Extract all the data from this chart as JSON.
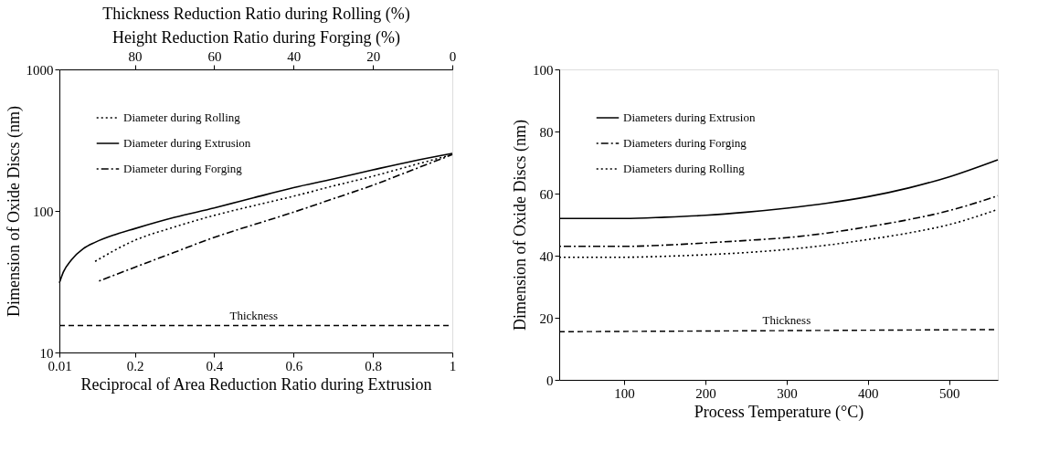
{
  "chart_data": [
    {
      "type": "line",
      "xlabel": "Reciprocal of Area Reduction Ratio during Extrusion",
      "ylabel": "Dimension of Oxide Discs (nm)",
      "x2label": "Thickness Reduction Ratio during Rolling (%)\nHeight Reduction Ratio during Forging (%)",
      "xlim": [
        0.01,
        1
      ],
      "xticks": [
        0.01,
        0.2,
        0.4,
        0.6,
        0.8,
        1
      ],
      "x2lim": [
        99,
        0
      ],
      "x2ticks": [
        80,
        60,
        40,
        20,
        0
      ],
      "ylim": [
        10,
        1000
      ],
      "yticks": [
        10,
        100,
        1000
      ],
      "log": "y",
      "grid": false,
      "legend": "top left",
      "x": [
        0.01,
        0.02,
        0.04,
        0.07,
        0.1,
        0.15,
        0.2,
        0.3,
        0.4,
        0.5,
        0.6,
        0.7,
        0.8,
        0.9,
        1
      ],
      "series": [
        {
          "name": "Diameter during Rolling",
          "color": "#000000",
          "line_style": "dotted",
          "x": [
            0.1,
            0.2,
            0.3,
            0.4,
            0.5,
            0.6,
            0.7,
            0.8,
            0.9,
            1
          ],
          "values": [
            44,
            62,
            77,
            93,
            109,
            127,
            150,
            176,
            210,
            250
          ]
        },
        {
          "name": "Diameter during Extrusion",
          "color": "#000000",
          "line_style": "solid",
          "values": [
            31,
            37,
            45,
            54,
            60,
            68,
            75,
            90,
            105,
            124,
            146,
            168,
            195,
            225,
            255
          ]
        },
        {
          "name": "Diameter during Forging",
          "color": "#000000",
          "line_style": "dashdot",
          "x": [
            0.11,
            0.2,
            0.3,
            0.4,
            0.5,
            0.6,
            0.7,
            0.8,
            0.9,
            1
          ],
          "values": [
            32,
            40,
            51,
            65,
            80,
            98,
            122,
            152,
            195,
            250
          ]
        },
        {
          "color": "#000000",
          "line_style": "dashed",
          "x": [
            0.01,
            1
          ],
          "values": [
            15.5,
            15.5
          ]
        }
      ],
      "annotations": [
        {
          "text": "Thickness",
          "x": 0.5,
          "y": 16.3
        }
      ]
    },
    {
      "type": "line",
      "xlabel": "Process Temperature (°C)",
      "ylabel": "Dimension of Oxide Discs (nm)",
      "xlim": [
        20,
        560
      ],
      "xticks": [
        100,
        200,
        300,
        400,
        500
      ],
      "ylim": [
        0,
        100
      ],
      "yticks": [
        0,
        20,
        40,
        60,
        80,
        100
      ],
      "grid": false,
      "legend": "top left",
      "x": [
        20,
        100,
        150,
        200,
        250,
        300,
        350,
        400,
        450,
        500,
        560
      ],
      "series": [
        {
          "name": "Diameters during Extrusion",
          "color": "#000000",
          "line_style": "solid",
          "values": [
            52,
            52,
            52.4,
            53,
            54,
            55.3,
            56.9,
            59,
            61.8,
            65.4,
            70.9
          ]
        },
        {
          "name": "Diameters during Forging",
          "color": "#000000",
          "line_style": "dashdot",
          "values": [
            43,
            43,
            43.4,
            44.1,
            44.9,
            45.8,
            47.3,
            49.3,
            51.6,
            54.5,
            59.3
          ]
        },
        {
          "name": "Diameters during Rolling",
          "color": "#000000",
          "line_style": "dotted",
          "values": [
            39.5,
            39.5,
            39.8,
            40.3,
            41,
            42,
            43.4,
            45.2,
            47.3,
            50,
            54.9
          ]
        },
        {
          "color": "#000000",
          "line_style": "dashed",
          "x": [
            20,
            560
          ],
          "values": [
            15.5,
            16.2
          ]
        }
      ],
      "annotations": [
        {
          "text": "Thickness",
          "x": 300,
          "y": 17
        }
      ]
    }
  ]
}
